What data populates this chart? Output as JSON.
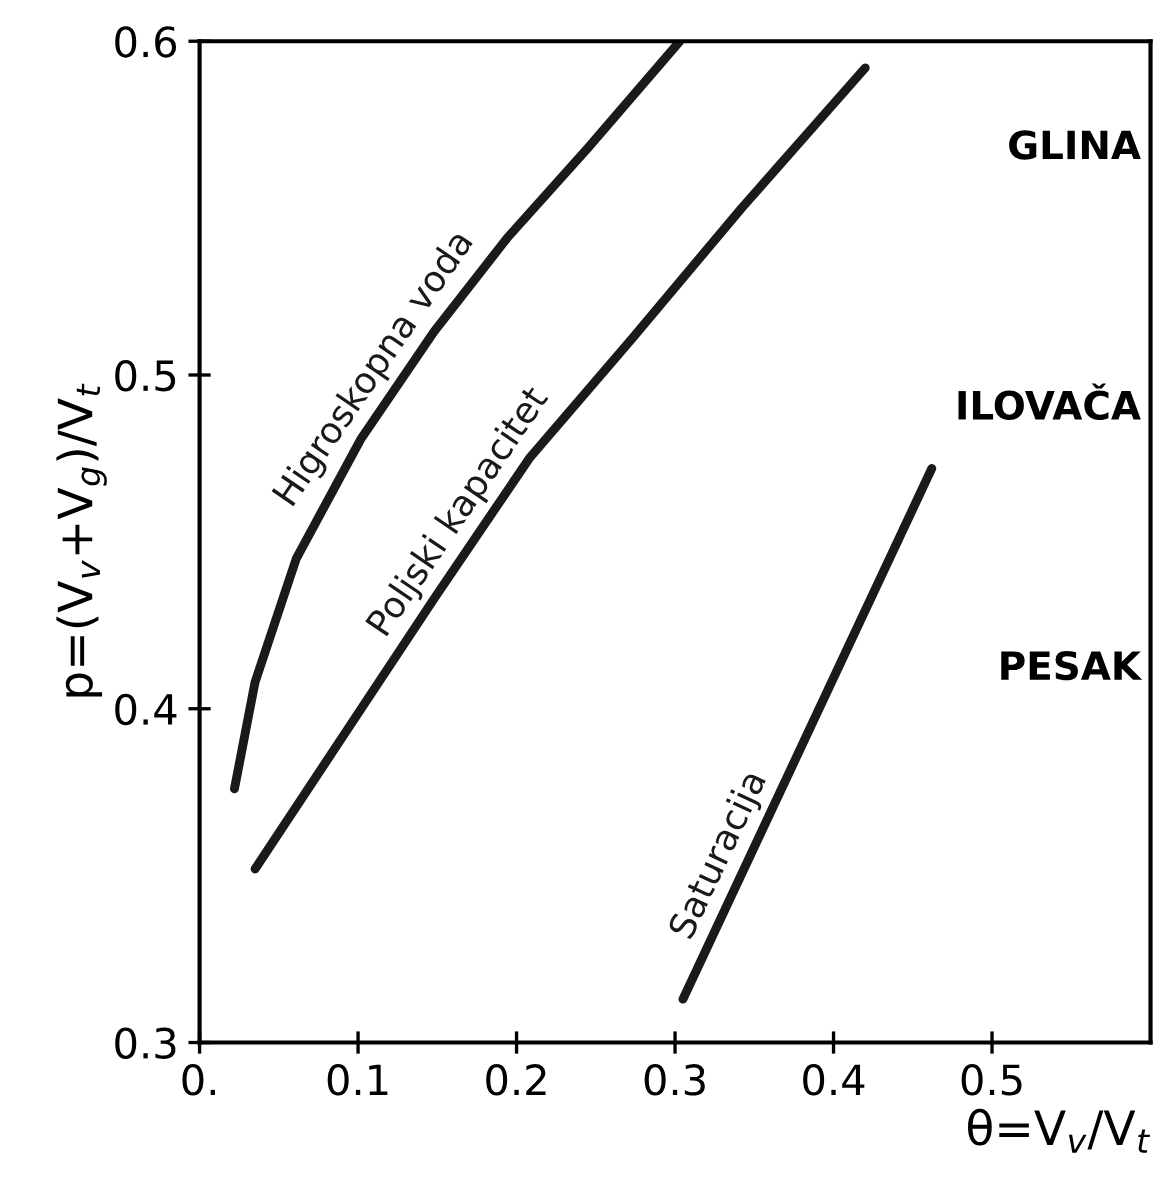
{
  "chart_data": {
    "type": "line",
    "xlabel": "θ=V$_{v}$/V$_{t}$",
    "ylabel": "p=(V$_{v}$+V$_{g}$)/V$_{t}$",
    "xlim": [
      0,
      0.6
    ],
    "ylim": [
      0.3,
      0.6
    ],
    "xticks": [
      {
        "value": 0,
        "label": "0."
      },
      0.1,
      0.2,
      0.3,
      0.4,
      0.5
    ],
    "yticks": [
      0.3,
      0.4,
      0.5,
      0.6
    ],
    "grid": false,
    "legend": false,
    "marker": "none",
    "line_style": "solid",
    "series": [
      {
        "name": "Higroskopna voda",
        "color": "#1a1a1a",
        "x": [
          0.022,
          0.035,
          0.061,
          0.102,
          0.148,
          0.194,
          0.245,
          0.303
        ],
        "values": [
          0.376,
          0.408,
          0.445,
          0.481,
          0.513,
          0.541,
          0.568,
          0.6
        ]
      },
      {
        "name": "Poljski kapacitet",
        "color": "#1a1a1a",
        "x": [
          0.035,
          0.088,
          0.148,
          0.208,
          0.273,
          0.342,
          0.42
        ],
        "values": [
          0.352,
          0.39,
          0.433,
          0.475,
          0.511,
          0.55,
          0.592
        ]
      },
      {
        "name": "Saturacija",
        "color": "#1a1a1a",
        "x": [
          0.305,
          0.383,
          0.462
        ],
        "values": [
          0.313,
          0.392,
          0.472
        ]
      }
    ],
    "annotations": [
      "GLINA",
      "ILOVAČA",
      "PESAK"
    ]
  }
}
